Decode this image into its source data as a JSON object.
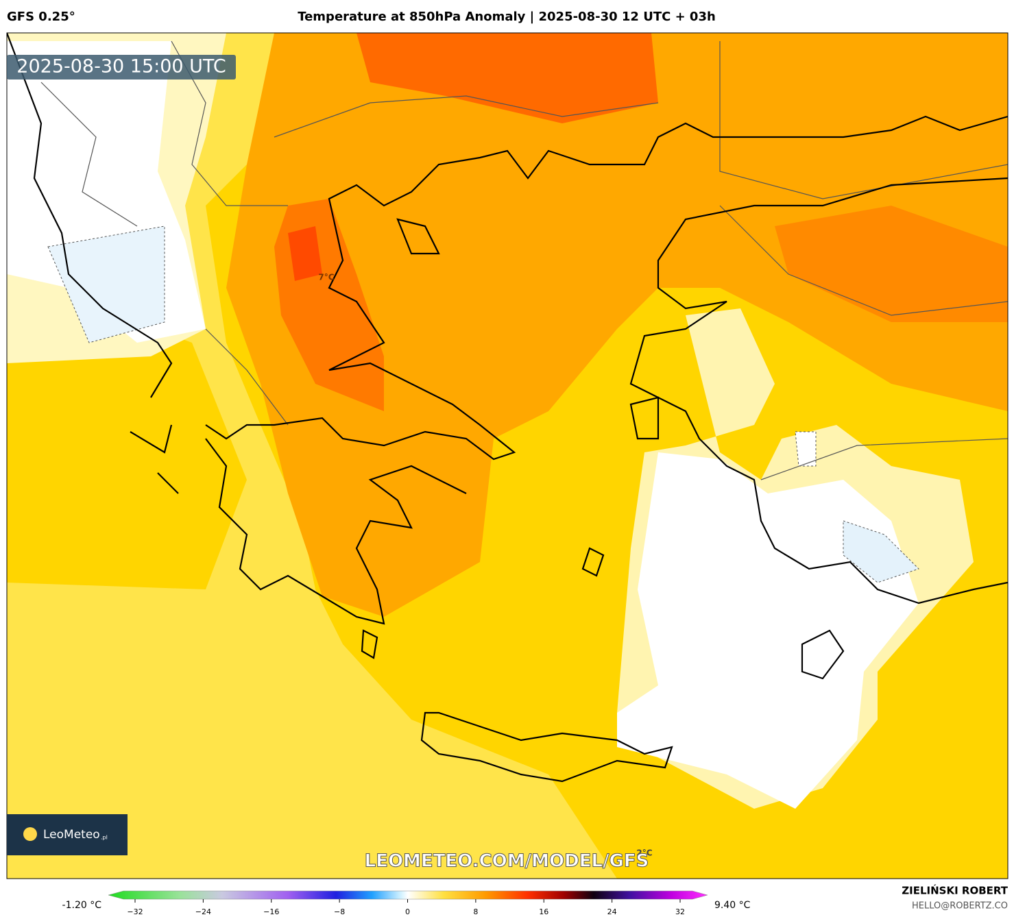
{
  "header": {
    "model": "GFS 0.25°",
    "title": "Temperature at 850hPa Anomaly | 2025-08-30 12 UTC + 03h",
    "timestamp": "2025-08-30 15:00 UTC"
  },
  "map": {
    "labels": [
      "7°C",
      "2°C"
    ],
    "watermark": "LEOMETEO.COM/MODEL/GFS",
    "logo": {
      "name": "LeoMeteo",
      "suffix": ".pl"
    }
  },
  "colorbar": {
    "min_label": "-1.20 °C",
    "max_label": "9.40 °C",
    "ticks": [
      {
        "value": -32,
        "label": "−32"
      },
      {
        "value": -24,
        "label": "−24"
      },
      {
        "value": -16,
        "label": "−16"
      },
      {
        "value": -8,
        "label": "−8"
      },
      0,
      8,
      16,
      24,
      32
    ]
  },
  "footer": {
    "author": "ZIELIŃSKI ROBERT",
    "email": "HELLO@ROBERTZ.CO"
  }
}
